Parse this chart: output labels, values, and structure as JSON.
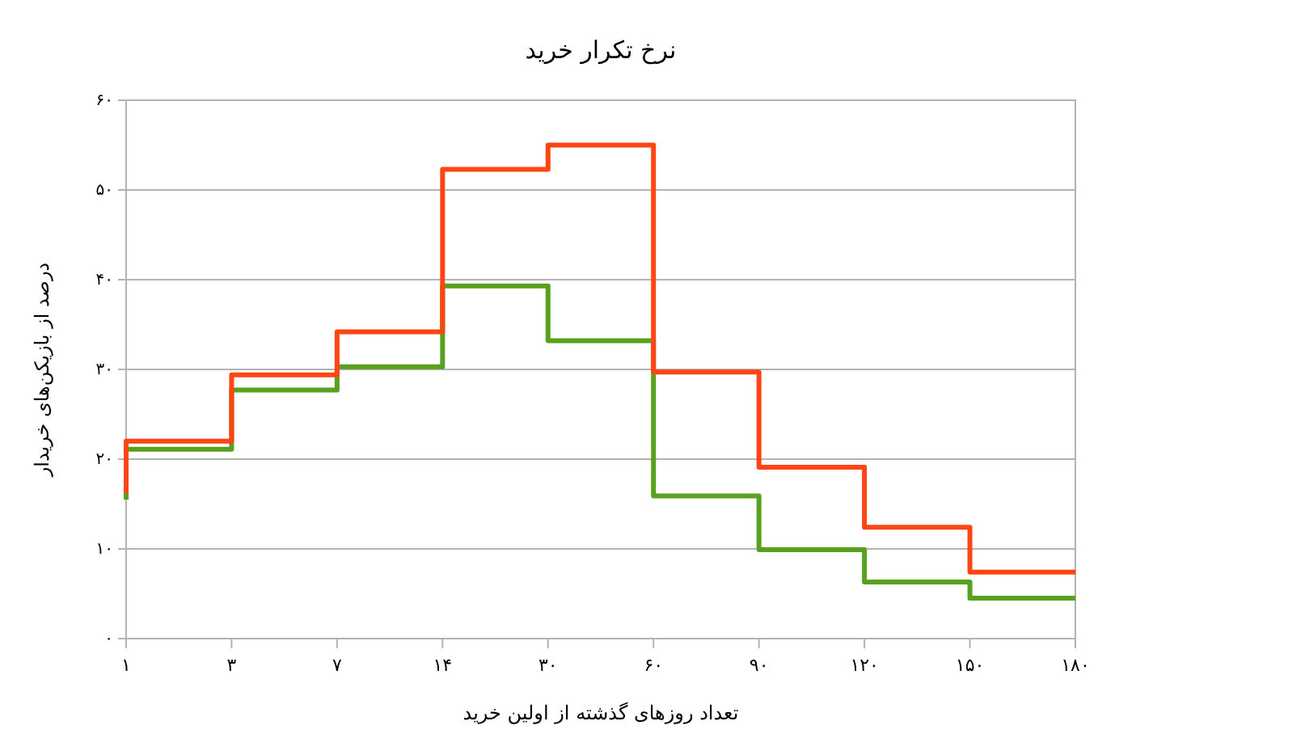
{
  "chart_data": {
    "type": "step",
    "title": "نرخ تکرار خرید",
    "xlabel": "تعداد روزهای گذشته از اولین خرید",
    "ylabel": "درصد از بازیکن‌های خریدار",
    "categories": [
      "۱",
      "۳",
      "۷",
      "۱۴",
      "۳۰",
      "۶۰",
      "۹۰",
      "۱۲۰",
      "۱۵۰",
      "۱۸۰"
    ],
    "series": [
      {
        "color": "#58a01e",
        "values": [
          15.5,
          21.1,
          27.7,
          30.3,
          39.3,
          33.2,
          15.9,
          9.9,
          6.3,
          4.5
        ]
      },
      {
        "color": "#ff4513",
        "values": [
          16.2,
          22,
          29.4,
          34.2,
          52.3,
          55,
          29.7,
          19.1,
          12.4,
          7.4
        ]
      }
    ],
    "ylim": [
      0,
      60
    ],
    "yticks": [
      {
        "value": 0,
        "label": "۰"
      },
      {
        "value": 10,
        "label": "۱۰"
      },
      {
        "value": 20,
        "label": "۲۰"
      },
      {
        "value": 30,
        "label": "۳۰"
      },
      {
        "value": 40,
        "label": "۴۰"
      },
      {
        "value": 50,
        "label": "۵۰"
      },
      {
        "value": 60,
        "label": "۶۰"
      }
    ],
    "grid": "y",
    "line_style": "solid",
    "marker": "none"
  }
}
